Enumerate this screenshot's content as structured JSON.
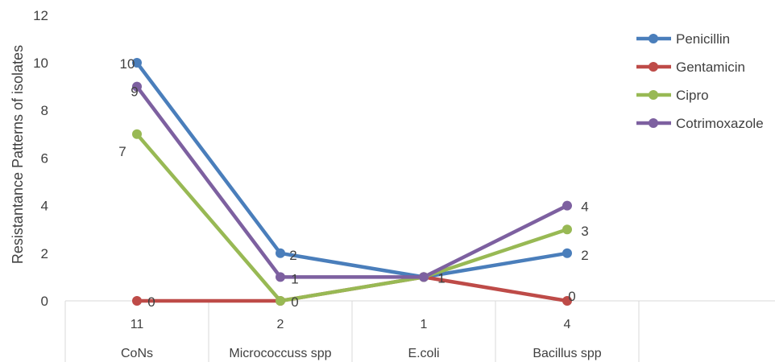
{
  "chart_data": {
    "type": "line",
    "ylabel": "Resistantance Patterns of isolates",
    "ylim": [
      0,
      12
    ],
    "yticks": [
      0,
      2,
      4,
      6,
      8,
      10,
      12
    ],
    "grid": false,
    "legend_position": "right",
    "x_tiers": {
      "top": [
        "11",
        "2",
        "1",
        "4"
      ],
      "bottom": [
        "CoNs",
        "Micrococcuss spp",
        "E.coli",
        "Bacillus spp"
      ]
    },
    "series": [
      {
        "name": "Penicillin",
        "color": "#4a7ebb",
        "values": [
          10,
          2,
          1,
          2
        ],
        "labels": [
          "10",
          "2",
          "",
          "2"
        ]
      },
      {
        "name": "Gentamicin",
        "color": "#be4b48",
        "values": [
          0,
          0,
          1,
          0
        ],
        "labels": [
          "0",
          "",
          "",
          "0"
        ]
      },
      {
        "name": "Cipro",
        "color": "#98b954",
        "values": [
          7,
          0,
          1,
          3
        ],
        "labels": [
          "7",
          "0",
          "",
          "3"
        ]
      },
      {
        "name": "Cotrimoxazole",
        "color": "#7d60a0",
        "values": [
          9,
          1,
          1,
          4
        ],
        "labels": [
          "9",
          "1",
          "1",
          "4"
        ]
      }
    ]
  }
}
